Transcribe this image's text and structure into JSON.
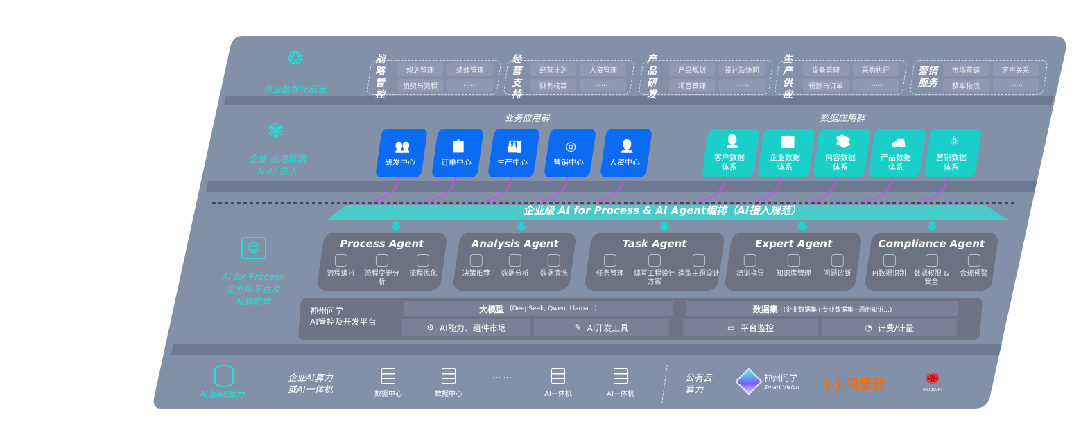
{
  "front": {
    "label": "企业数智化前台",
    "icon": "brain-icon",
    "groups": [
      {
        "title": "战略管控",
        "items": [
          "规划管理",
          "绩效管理",
          "组织与流程",
          "……"
        ]
      },
      {
        "title": "经营支持",
        "items": [
          "经营计划",
          "人资管理",
          "财务核算",
          "……"
        ]
      },
      {
        "title": "产品研发",
        "items": [
          "产品规划",
          "设计及协同",
          "项目管理",
          "……"
        ]
      },
      {
        "title": "生产供应",
        "items": [
          "设备管理",
          "采购执行",
          "预测与订单",
          "……"
        ]
      },
      {
        "title": "营销服务",
        "items": [
          "市场营销",
          "客户关系",
          "整车物流",
          "……"
        ]
      }
    ]
  },
  "apps": {
    "label_1": "企业 应用解耦",
    "label_2": "& AI 侵入",
    "icon": "molecule-icon",
    "business_title": "业务应用群",
    "business": [
      {
        "label": "研发中心",
        "icon": "users-icon"
      },
      {
        "label": "订单中心",
        "icon": "clipboard-icon"
      },
      {
        "label": "生产中心",
        "icon": "factory-icon"
      },
      {
        "label": "营销中心",
        "icon": "target-icon"
      },
      {
        "label": "人资中心",
        "icon": "person-icon"
      }
    ],
    "data_title": "数据应用群",
    "data": [
      {
        "label": "客户数据体系",
        "icon": "user-icon"
      },
      {
        "label": "企业数据体系",
        "icon": "building-icon"
      },
      {
        "label": "内容数据体系",
        "icon": "books-icon"
      },
      {
        "label": "产品数据体系",
        "icon": "car-icon"
      },
      {
        "label": "营销数据体系",
        "icon": "atom-icon"
      }
    ]
  },
  "orchestration": {
    "title": "企业级 AI for Process & AI Agent编排（AI接入规范）"
  },
  "ai": {
    "label_1": "AI for Process",
    "label_2": "企业AI平台及",
    "label_3": "AI智能体",
    "icon": "face-scan-icon",
    "agents": [
      {
        "name": "Process Agent",
        "items": [
          "流程编排",
          "流程变更分析",
          "流程优化"
        ]
      },
      {
        "name": "Analysis Agent",
        "items": [
          "决策推荐",
          "数据分析",
          "数据清洗"
        ]
      },
      {
        "name": "Task Agent",
        "items": [
          "任务管理",
          "编写工程设计方案",
          "造型主题设计"
        ]
      },
      {
        "name": "Expert Agent",
        "items": [
          "培训指导",
          "知识库管理",
          "问题诊断"
        ]
      },
      {
        "name": "Compliance Agent",
        "items": [
          "PI数据识别",
          "数据权限 & 安全",
          "合规预警"
        ]
      }
    ]
  },
  "platform": {
    "title_1": "神州问学",
    "title_2": "AI管控及开发平台",
    "llm": "大模型",
    "llm_note": "(DeepSeek, Qwen, Llama...)",
    "dataset": "数据集",
    "dataset_note": "(企业数据集+专业数据集+通用知识...)",
    "cells": [
      "AI能力、组件市场",
      "AI开发工具",
      "平台监控",
      "计费/计量"
    ]
  },
  "infra": {
    "label": "AI基础算力",
    "icon": "database-icon",
    "enterprise_1": "企业AI算力",
    "enterprise_2": "或AI一体机",
    "servers": [
      "数据中心",
      "数据中心",
      "AI一体机",
      "AI一体机"
    ],
    "ellipsis": "… …",
    "cloud_1": "公有云",
    "cloud_2": "算力",
    "vendors": [
      {
        "name": "神州问学",
        "sub": "Smart Vision"
      },
      {
        "name": "阿里云",
        "color": "#ff6a00"
      },
      {
        "name": "HUAWEI",
        "color": "#e60012"
      }
    ]
  },
  "colors": {
    "panel": "#8290a8",
    "blue": "#0b6cf3",
    "teal": "#1bcfc9",
    "accent": "#1fe0d8",
    "arrow": "#e040fb"
  }
}
